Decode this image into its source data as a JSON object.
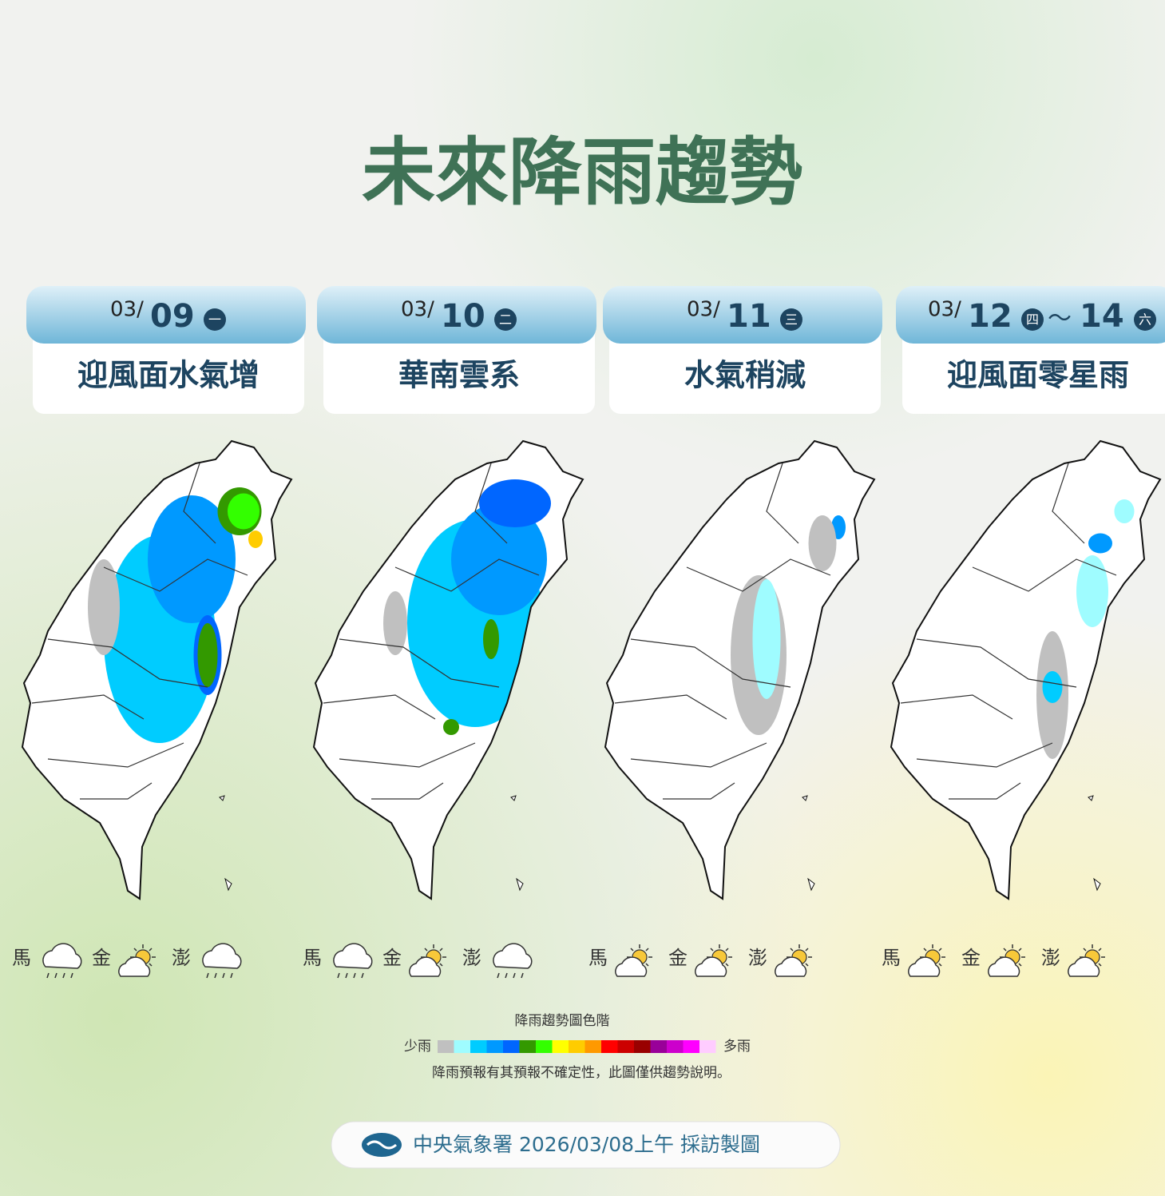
{
  "title": "未來降雨趨勢",
  "panels": [
    {
      "month": "03/",
      "day": "09",
      "weekday": "一",
      "heading": "迎風面水氣增",
      "islands": [
        "馬",
        "金",
        "澎"
      ]
    },
    {
      "month": "03/",
      "day": "10",
      "weekday": "二",
      "heading": "華南雲系",
      "islands": [
        "馬",
        "金",
        "澎"
      ]
    },
    {
      "month": "03/",
      "day": "11",
      "weekday": "三",
      "heading": "水氣稍減",
      "islands": [
        "馬",
        "金",
        "澎"
      ]
    },
    {
      "month": "03/",
      "day": "12",
      "weekday": "四",
      "tilde": "～",
      "end_day": "14",
      "end_weekday": "六",
      "heading": "迎風面零星雨",
      "islands": [
        "馬",
        "金",
        "澎"
      ]
    }
  ],
  "legend": {
    "title": "降雨趨勢圖色階",
    "low": "少雨",
    "high": "多雨",
    "note": "降雨預報有其預報不確定性，此圖僅供趨勢說明。",
    "colors": [
      "#c0c0c0",
      "#9ffcff",
      "#00ccff",
      "#0099ff",
      "#0066ff",
      "#339900",
      "#33ff00",
      "#ffff00",
      "#ffcc00",
      "#ff9900",
      "#ff0000",
      "#cc0000",
      "#990000",
      "#990099",
      "#cc00cc",
      "#ff00ff",
      "#ffccff"
    ]
  },
  "footer": "中央氣象署 2026/03/08上午 採訪製圖"
}
